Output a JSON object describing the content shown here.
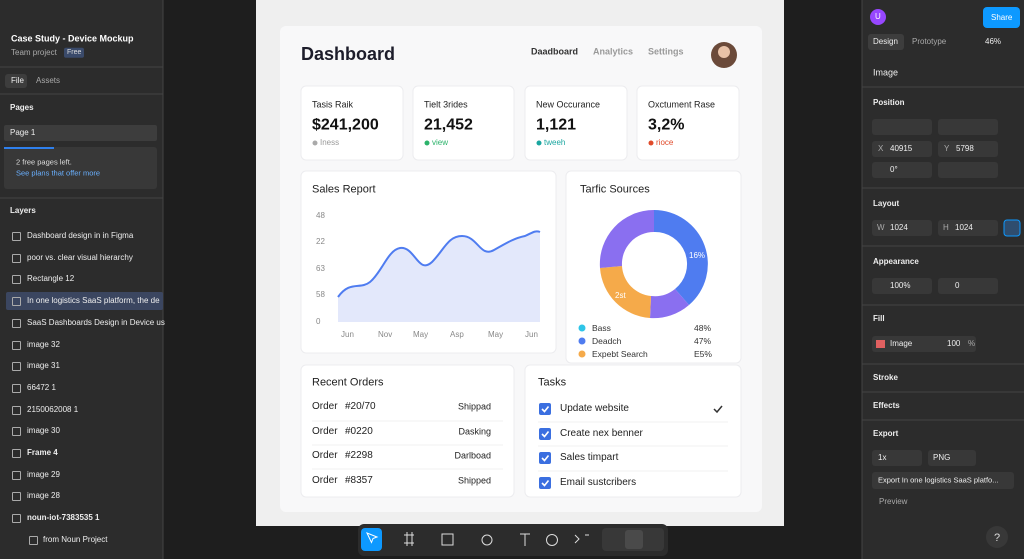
{
  "left_panel": {
    "project_title": "Case Study - Device Mockup",
    "team": "Team project",
    "plan": "Free",
    "tabs": [
      "File",
      "Assets"
    ],
    "pages_heading": "Pages",
    "page": "Page 1",
    "notice": [
      "2 free pages left.",
      "See plans that offer more"
    ],
    "layers_heading": "Layers",
    "layers": [
      "Dashboard design in in Figma",
      "poor vs. clear visual hierarchy",
      "Rectangle 12",
      "In one logistics SaaS platform, the de",
      "SaaS Dashboards Design in Device us",
      "image 32",
      "image 31",
      "66472 1",
      "2150062008 1",
      "image 30",
      "Frame 4",
      "image 29",
      "image 28",
      "noun-iot-7383535 1",
      "from Noun Project"
    ]
  },
  "right_panel": {
    "avatar": "U",
    "share": "Share",
    "tabs": [
      "Design",
      "Prototype"
    ],
    "zoom": "46%",
    "selection": "Image",
    "position": {
      "heading": "Position",
      "x_label": "X",
      "x": "40915",
      "y_label": "Y",
      "y": "5798",
      "rotation": "0°"
    },
    "layout": {
      "heading": "Layout",
      "w_label": "W",
      "w": "1024",
      "h_label": "H",
      "h": "1024"
    },
    "appearance": {
      "heading": "Appearance",
      "opacity": "100%",
      "radius": "0"
    },
    "fill": {
      "heading": "Fill",
      "type": "Image",
      "opacity": "100",
      "unit": "%"
    },
    "stroke": "Stroke",
    "effects": "Effects",
    "export": {
      "heading": "Export",
      "scale": "1x",
      "format": "PNG",
      "button": "Export In one logistics SaaS platfo...",
      "preview": "Preview"
    }
  },
  "dashboard": {
    "title": "Dashboard",
    "nav": [
      "Daadboard",
      "Analytics",
      "Settings"
    ],
    "cards": [
      {
        "label": "Tasis Raik",
        "value": "$241,200",
        "sub": "Iness"
      },
      {
        "label": "Tielt 3rides",
        "value": "21,452",
        "sub": "view"
      },
      {
        "label": "New Occurance",
        "value": "1,121",
        "sub": "tweeh"
      },
      {
        "label": "Oxctument Rase",
        "value": "3,2%",
        "sub": "rioce"
      }
    ],
    "sales_report": {
      "title": "Sales Report",
      "y_labels": [
        "48",
        "22",
        "63",
        "58",
        "0"
      ],
      "x_labels": [
        "Jun",
        "Nov",
        "May",
        "Asp",
        "May",
        "Jun"
      ]
    },
    "traffic": {
      "title": "Tarfic Sources",
      "donut_labels": [
        "16%",
        "2st"
      ],
      "legend": [
        {
          "name": "Bass",
          "value": "48%"
        },
        {
          "name": "Deadch",
          "value": "47%"
        },
        {
          "name": "Expebt Search",
          "value": "E5%"
        }
      ]
    },
    "orders": {
      "title": "Recent Orders",
      "rows": [
        [
          "Order",
          "#20/70",
          "Shippad"
        ],
        [
          "Order",
          "#0220",
          "Dasking"
        ],
        [
          "Order",
          "#2298",
          "Darlboad"
        ],
        [
          "Order",
          "#8357",
          "Shipped"
        ]
      ]
    },
    "tasks": {
      "title": "Tasks",
      "items": [
        "Update website",
        "Create nex benner",
        "Sales timpart",
        "Email sustcribers"
      ]
    }
  }
}
